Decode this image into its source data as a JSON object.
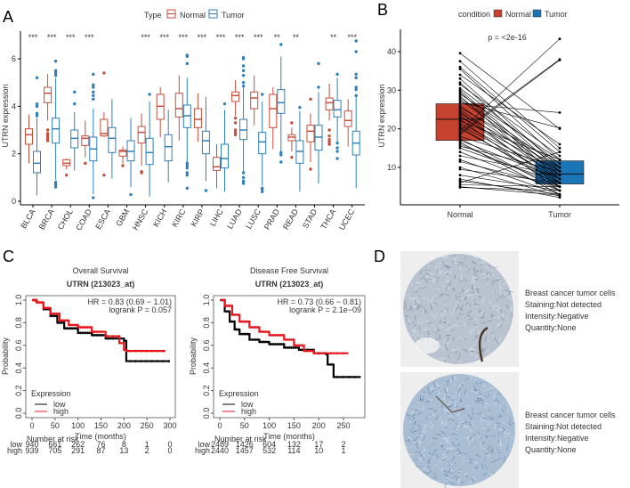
{
  "panels": {
    "a": "A",
    "b": "B",
    "c": "C",
    "d": "D"
  },
  "colors": {
    "normal_a": "#c44e3a",
    "tumor_a": "#2f7fb8",
    "normal_b": "#c5422f",
    "tumor_b": "#1b75b6",
    "km_low": "#000000",
    "km_high": "#e8141c"
  },
  "chart_data": [
    {
      "type": "box",
      "ylabel": "UTRN expression",
      "legend": {
        "title": "Type",
        "entries": [
          "Normal",
          "Tumor"
        ],
        "placement": "top"
      },
      "yticks": [
        0,
        2,
        4,
        6
      ],
      "ylim": [
        0,
        7
      ],
      "categories": [
        "BLCA",
        "BRCA",
        "CHOL",
        "COAD",
        "ESCA",
        "GBM",
        "HNSC",
        "KICH",
        "KIRC",
        "KIRP",
        "LIHC",
        "LUAD",
        "LUSC",
        "PRAD",
        "READ",
        "STAD",
        "THCA",
        "UCEC"
      ],
      "significance": [
        "***",
        "***",
        "***",
        "***",
        "",
        "",
        "***",
        "***",
        "***",
        "***",
        "***",
        "***",
        "***",
        "**",
        "**",
        "",
        "**",
        "***"
      ],
      "normal": [
        {
          "q1": 2.4,
          "med": 2.8,
          "q3": 3.05,
          "min": 1.6,
          "max": 3.65,
          "out": []
        },
        {
          "q1": 4.15,
          "med": 4.55,
          "q3": 4.8,
          "min": 3.4,
          "max": 5.35,
          "out": [
            2.55,
            2.65,
            2.75,
            2.85,
            3.0
          ]
        },
        {
          "q1": 1.5,
          "med": 1.6,
          "q3": 1.75,
          "min": 1.35,
          "max": 1.8,
          "out": [
            1.1
          ]
        },
        {
          "q1": 2.35,
          "med": 2.65,
          "q3": 2.75,
          "min": 1.85,
          "max": 3.4,
          "out": [
            1.6
          ]
        },
        {
          "q1": 2.75,
          "med": 2.85,
          "q3": 3.45,
          "min": 2.7,
          "max": 3.75,
          "out": [
            1.1,
            5.4
          ]
        },
        {
          "q1": 1.9,
          "med": 2.1,
          "q3": 2.15,
          "min": 1.6,
          "max": 2.3,
          "out": [
            1.5
          ]
        },
        {
          "q1": 2.45,
          "med": 2.9,
          "q3": 3.15,
          "min": 1.5,
          "max": 3.7,
          "out": [
            1.2,
            1.25
          ]
        },
        {
          "q1": 3.45,
          "med": 4.0,
          "q3": 4.5,
          "min": 2.7,
          "max": 4.8,
          "out": []
        },
        {
          "q1": 3.55,
          "med": 3.9,
          "q3": 4.55,
          "min": 2.55,
          "max": 5.3,
          "out": []
        },
        {
          "q1": 3.1,
          "med": 3.45,
          "q3": 3.9,
          "min": 2.5,
          "max": 4.55,
          "out": []
        },
        {
          "q1": 1.3,
          "med": 1.45,
          "q3": 1.85,
          "min": 0.55,
          "max": 2.4,
          "out": []
        },
        {
          "q1": 4.2,
          "med": 4.45,
          "q3": 4.6,
          "min": 3.6,
          "max": 5.1,
          "out": [
            2.8,
            2.9,
            3.0,
            3.3,
            3.5
          ]
        },
        {
          "q1": 3.9,
          "med": 4.35,
          "q3": 4.6,
          "min": 3.2,
          "max": 5.3,
          "out": []
        },
        {
          "q1": 3.1,
          "med": 3.9,
          "q3": 4.5,
          "min": 2.2,
          "max": 4.8,
          "out": []
        },
        {
          "q1": 2.55,
          "med": 2.7,
          "q3": 2.8,
          "min": 2.1,
          "max": 3.1,
          "out": [
            1.85,
            3.3
          ]
        },
        {
          "q1": 2.5,
          "med": 2.95,
          "q3": 3.2,
          "min": 1.65,
          "max": 3.7,
          "out": [
            1.35,
            4.3
          ]
        },
        {
          "q1": 3.85,
          "med": 4.15,
          "q3": 4.35,
          "min": 3.4,
          "max": 4.95,
          "out": [
            2.4,
            2.5,
            2.6,
            2.75,
            3.0
          ]
        },
        {
          "q1": 3.15,
          "med": 3.4,
          "q3": 3.8,
          "min": 2.3,
          "max": 4.3,
          "out": []
        }
      ],
      "tumor": [
        {
          "q1": 1.2,
          "med": 1.6,
          "q3": 2.1,
          "min": 0.25,
          "max": 3.5,
          "out": [
            3.6,
            3.7,
            4.0,
            4.1,
            5.2
          ]
        },
        {
          "q1": 2.45,
          "med": 3.05,
          "q3": 3.5,
          "min": 0.9,
          "max": 5.2,
          "out": [
            0.6,
            0.7,
            0.8,
            5.3,
            5.4,
            5.5,
            5.9
          ]
        },
        {
          "q1": 2.25,
          "med": 2.65,
          "q3": 3.0,
          "min": 1.3,
          "max": 3.75,
          "out": [
            4.1,
            4.6
          ]
        },
        {
          "q1": 1.7,
          "med": 2.2,
          "q3": 2.7,
          "min": 0.3,
          "max": 3.9,
          "out": [
            0.15,
            4.3,
            4.45,
            4.6,
            4.8,
            4.9,
            5.35
          ]
        },
        {
          "q1": 2.05,
          "med": 2.65,
          "q3": 3.1,
          "min": 0.95,
          "max": 4.3,
          "out": []
        },
        {
          "q1": 1.7,
          "med": 2.1,
          "q3": 2.55,
          "min": 0.6,
          "max": 3.5,
          "out": [
            0.28
          ]
        },
        {
          "q1": 1.55,
          "med": 2.05,
          "q3": 2.65,
          "min": 0.2,
          "max": 4.2,
          "out": [
            4.5
          ]
        },
        {
          "q1": 1.7,
          "med": 2.3,
          "q3": 2.8,
          "min": 0.8,
          "max": 3.85,
          "out": []
        },
        {
          "q1": 3.1,
          "med": 3.6,
          "q3": 4.05,
          "min": 1.65,
          "max": 5.2,
          "out": [
            0.55,
            1.1,
            1.2,
            1.4,
            1.5,
            1.6,
            5.8,
            6.1,
            6.15
          ]
        },
        {
          "q1": 2.0,
          "med": 2.55,
          "q3": 2.95,
          "min": 0.85,
          "max": 4.4,
          "out": [
            0.45
          ]
        },
        {
          "q1": 1.4,
          "med": 1.8,
          "q3": 2.4,
          "min": 0.4,
          "max": 3.85,
          "out": [
            4.1
          ]
        },
        {
          "q1": 2.6,
          "med": 3.0,
          "q3": 3.45,
          "min": 1.25,
          "max": 4.8,
          "out": [
            0.75,
            0.85,
            1.0,
            1.2,
            4.85,
            5.0,
            5.3,
            5.5,
            5.7,
            6.0,
            6.05
          ]
        },
        {
          "q1": 2.0,
          "med": 2.5,
          "q3": 2.9,
          "min": 0.65,
          "max": 4.2,
          "out": [
            0.4,
            0.5,
            0.55,
            4.5
          ]
        },
        {
          "q1": 3.7,
          "med": 4.15,
          "q3": 4.7,
          "min": 2.1,
          "max": 6.1,
          "out": [
            1.65,
            1.95,
            2.05,
            6.6
          ]
        },
        {
          "q1": 1.6,
          "med": 2.1,
          "q3": 2.55,
          "min": 0.4,
          "max": 3.8,
          "out": [
            3.95
          ]
        },
        {
          "q1": 2.15,
          "med": 2.7,
          "q3": 3.2,
          "min": 0.75,
          "max": 4.6,
          "out": [
            4.8,
            5.8
          ]
        },
        {
          "q1": 3.55,
          "med": 3.85,
          "q3": 4.25,
          "min": 2.5,
          "max": 5.2,
          "out": [
            1.8,
            2.1,
            2.25,
            2.45,
            5.35
          ]
        },
        {
          "q1": 1.95,
          "med": 2.45,
          "q3": 2.95,
          "min": 0.55,
          "max": 4.4,
          "out": [
            4.45,
            4.7,
            4.8,
            5.2,
            5.35,
            6.3,
            6.75
          ]
        }
      ]
    },
    {
      "type": "paired-box",
      "ylabel": "UTRN expression",
      "legend": {
        "title": "condition",
        "entries": [
          "Normal",
          "Tumor"
        ],
        "placement": "top"
      },
      "categories": [
        "Normal",
        "Tumor"
      ],
      "yticks": [
        10,
        20,
        30,
        40
      ],
      "annotation": "p = <2e-16",
      "boxes": [
        {
          "q1": 17,
          "med": 22.5,
          "q3": 26.5
        },
        {
          "q1": 5.7,
          "med": 8.3,
          "q3": 11.7
        }
      ],
      "pairs": [
        [
          39.6,
          20
        ],
        [
          37.5,
          15
        ],
        [
          36,
          14
        ],
        [
          35.5,
          12
        ],
        [
          34,
          16
        ],
        [
          33,
          10
        ],
        [
          32,
          9
        ],
        [
          31.5,
          13
        ],
        [
          30.5,
          11
        ],
        [
          30,
          8
        ],
        [
          29.5,
          7
        ],
        [
          29,
          12
        ],
        [
          28.5,
          6
        ],
        [
          28,
          10
        ],
        [
          27.5,
          9
        ],
        [
          27,
          20.2
        ],
        [
          26.5,
          24.2
        ],
        [
          26,
          8
        ],
        [
          25.5,
          11
        ],
        [
          25,
          7
        ],
        [
          24.5,
          5
        ],
        [
          24,
          10
        ],
        [
          23.5,
          6
        ],
        [
          23,
          9
        ],
        [
          22.5,
          4
        ],
        [
          22,
          12
        ],
        [
          21.5,
          8
        ],
        [
          21,
          7
        ],
        [
          20.5,
          5
        ],
        [
          20,
          6
        ],
        [
          19.5,
          43.3
        ],
        [
          19,
          38
        ],
        [
          18.5,
          37.8
        ],
        [
          18,
          10
        ],
        [
          17.5,
          4
        ],
        [
          17,
          7
        ],
        [
          16.5,
          3
        ],
        [
          16,
          5
        ],
        [
          15.5,
          9
        ],
        [
          15,
          6
        ],
        [
          14,
          4
        ],
        [
          13,
          8
        ],
        [
          12,
          3
        ],
        [
          11.5,
          5
        ],
        [
          10,
          2.5
        ],
        [
          9.5,
          6
        ],
        [
          8,
          4
        ],
        [
          7,
          2.2
        ],
        [
          6.5,
          3
        ],
        [
          6,
          14
        ],
        [
          5.5,
          5
        ],
        [
          5,
          2.8
        ],
        [
          4.8,
          4
        ]
      ]
    },
    {
      "type": "line",
      "title": "Overall Survival",
      "subtitle": "UTRN (213023_at)",
      "xlabel": "Time (months)",
      "ylabel": "Probability",
      "xticks": [
        0,
        50,
        100,
        150,
        200,
        250,
        300
      ],
      "yticks": [
        "0.0",
        "0.2",
        "0.4",
        "0.6",
        "0.8",
        "1.0"
      ],
      "xlim": [
        0,
        300
      ],
      "ylim": [
        0,
        1
      ],
      "hr": "HR = 0.83 (0.69 − 1.01)",
      "logrank": "logrank P = 0.057",
      "legend": {
        "title": "Expression",
        "entries": [
          "low",
          "high"
        ],
        "placement": "bottom-left"
      },
      "series": [
        {
          "name": "low",
          "points": [
            [
              0,
              1
            ],
            [
              10,
              0.98
            ],
            [
              25,
              0.92
            ],
            [
              40,
              0.86
            ],
            [
              55,
              0.8
            ],
            [
              70,
              0.75
            ],
            [
              100,
              0.71
            ],
            [
              130,
              0.69
            ],
            [
              160,
              0.66
            ],
            [
              200,
              0.64
            ],
            [
              205,
              0.46
            ],
            [
              300,
              0.46
            ]
          ]
        },
        {
          "name": "high",
          "points": [
            [
              0,
              1
            ],
            [
              10,
              0.98
            ],
            [
              25,
              0.93
            ],
            [
              40,
              0.88
            ],
            [
              60,
              0.82
            ],
            [
              80,
              0.78
            ],
            [
              100,
              0.76
            ],
            [
              130,
              0.72
            ],
            [
              160,
              0.68
            ],
            [
              190,
              0.62
            ],
            [
              200,
              0.56
            ],
            [
              205,
              0.55
            ],
            [
              290,
              0.55
            ]
          ]
        }
      ],
      "risk_title": "Number at risk",
      "risk": {
        "low": [
          "940",
          "661",
          "262",
          "76",
          "8",
          "1",
          "0"
        ],
        "high": [
          "939",
          "705",
          "291",
          "87",
          "13",
          "2",
          "0"
        ]
      }
    },
    {
      "type": "line",
      "title": "Disease Free Survival",
      "subtitle": "UTRN (213023_at)",
      "xlabel": "Time (months)",
      "ylabel": "Probability",
      "xticks": [
        0,
        50,
        100,
        150,
        200,
        250
      ],
      "yticks": [
        "0.0",
        "0.2",
        "0.4",
        "0.6",
        "0.8",
        "1.0"
      ],
      "xlim": [
        0,
        250
      ],
      "ylim": [
        0,
        1
      ],
      "hr": "HR = 0.73 (0.66 − 0.81)",
      "logrank": "logrank P = 2.1e−09",
      "legend": {
        "title": "Expression",
        "entries": [
          "low",
          "high"
        ],
        "placement": "bottom-left"
      },
      "series": [
        {
          "name": "low",
          "points": [
            [
              0,
              1
            ],
            [
              10,
              0.9
            ],
            [
              20,
              0.81
            ],
            [
              30,
              0.74
            ],
            [
              40,
              0.7
            ],
            [
              60,
              0.65
            ],
            [
              80,
              0.63
            ],
            [
              100,
              0.61
            ],
            [
              130,
              0.58
            ],
            [
              160,
              0.56
            ],
            [
              190,
              0.53
            ],
            [
              215,
              0.52
            ],
            [
              218,
              0.43
            ],
            [
              228,
              0.43
            ],
            [
              230,
              0.32
            ],
            [
              285,
              0.32
            ]
          ]
        },
        {
          "name": "high",
          "points": [
            [
              0,
              1
            ],
            [
              10,
              0.95
            ],
            [
              25,
              0.87
            ],
            [
              40,
              0.81
            ],
            [
              60,
              0.76
            ],
            [
              80,
              0.72
            ],
            [
              100,
              0.69
            ],
            [
              130,
              0.65
            ],
            [
              150,
              0.6
            ],
            [
              170,
              0.55
            ],
            [
              190,
              0.53
            ],
            [
              260,
              0.53
            ]
          ]
        }
      ],
      "risk_title": "Number at risk",
      "risk": {
        "low": [
          "2489",
          "1426",
          "604",
          "132",
          "17",
          "2"
        ],
        "high": [
          "2440",
          "1457",
          "532",
          "114",
          "10",
          "1"
        ]
      }
    }
  ],
  "ihc": [
    {
      "lines": [
        "Breast cancer tumor cells",
        "Staining:Not detected",
        "Intensity:Negative",
        "Quantity:None"
      ]
    },
    {
      "lines": [
        "Breast cancer tumor cells",
        "Staining:Not detected",
        "Intensity:Negative",
        "Quantity:None"
      ]
    }
  ]
}
